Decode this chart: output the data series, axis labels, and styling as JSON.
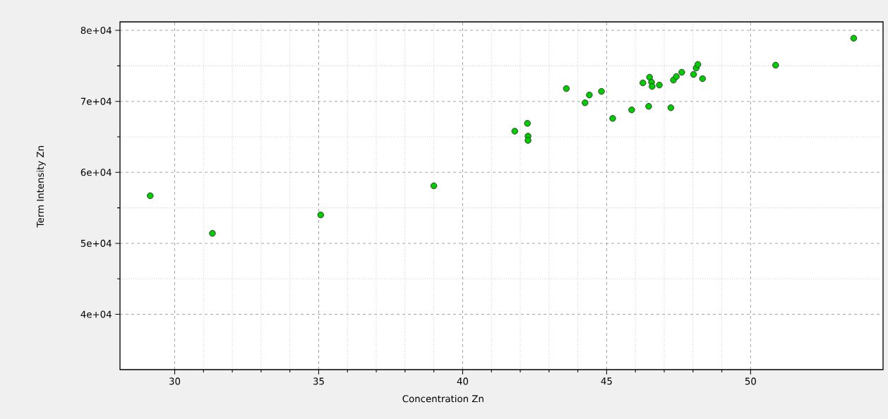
{
  "chart_data": {
    "type": "scatter",
    "xlabel": "Concentration Zn",
    "ylabel": "Term Intensity Zn",
    "x": [
      29.15,
      31.31,
      35.07,
      39.0,
      41.81,
      42.25,
      42.27,
      42.27,
      43.6,
      44.25,
      44.4,
      44.82,
      45.21,
      45.87,
      46.26,
      46.49,
      46.56,
      46.58,
      46.46,
      46.83,
      47.23,
      47.32,
      47.42,
      47.61,
      48.02,
      48.11,
      48.17,
      48.33,
      50.87,
      53.58
    ],
    "values": [
      56700,
      51400,
      54000,
      58100,
      65800,
      66900,
      65100,
      64500,
      71800,
      69800,
      70900,
      71400,
      67600,
      68800,
      72600,
      73400,
      72700,
      72100,
      69300,
      72300,
      69100,
      73000,
      73500,
      74100,
      73800,
      74700,
      75200,
      73200,
      75100,
      78900
    ],
    "color": "#00cc00",
    "marker": "circle",
    "xlim": [
      28.1,
      54.6
    ],
    "ylim": [
      32200,
      81200
    ],
    "xticks": [
      30,
      35,
      40,
      45,
      50
    ],
    "yticks": [
      {
        "value": 40000,
        "label": "4e+04"
      },
      {
        "value": 50000,
        "label": "5e+04"
      },
      {
        "value": 60000,
        "label": "6e+04"
      },
      {
        "value": 70000,
        "label": "7e+04"
      },
      {
        "value": 80000,
        "label": "8e+04"
      }
    ],
    "grid": true
  }
}
